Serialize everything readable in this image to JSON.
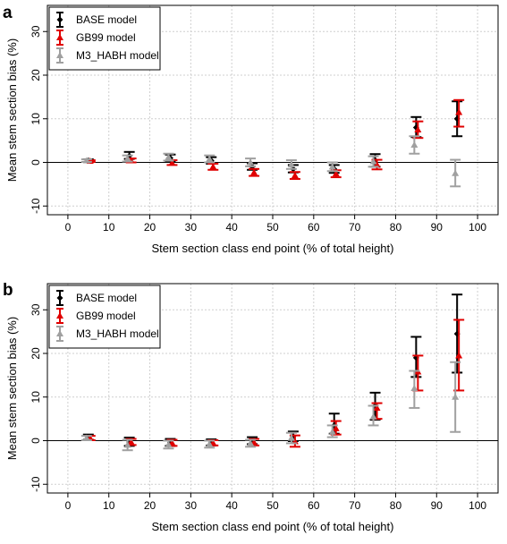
{
  "chart_data": [
    {
      "panel_label": "a",
      "type": "scatter",
      "xlabel": "Stem section class end point (% of total height)",
      "ylabel": "Mean stem section bias (%)",
      "xlim": [
        -5,
        105
      ],
      "ylim": [
        -12,
        36
      ],
      "xticks": [
        0,
        10,
        20,
        30,
        40,
        50,
        60,
        70,
        80,
        90,
        100
      ],
      "yticks": [
        -10,
        0,
        10,
        20,
        30
      ],
      "grid": true,
      "legend_position": "top-left",
      "x": [
        5,
        15,
        25,
        35,
        45,
        55,
        65,
        75,
        85,
        95
      ],
      "series": [
        {
          "name": "BASE model",
          "color": "#000000",
          "marker": "diamond",
          "values": [
            0.4,
            1.5,
            1.0,
            0.4,
            -1.0,
            -1.5,
            -1.5,
            0.5,
            8.0,
            10.0
          ],
          "low": [
            0.1,
            0.8,
            0.3,
            -0.3,
            -1.7,
            -2.3,
            -2.4,
            -1.0,
            5.8,
            6.0
          ],
          "high": [
            0.7,
            2.4,
            1.8,
            1.2,
            -0.2,
            -0.6,
            -0.6,
            1.9,
            10.4,
            14.0
          ]
        },
        {
          "name": "GB99 model",
          "color": "#e00000",
          "marker": "triangle",
          "values": [
            0.3,
            0.4,
            -0.1,
            -1.0,
            -2.3,
            -3.0,
            -2.6,
            -0.5,
            7.5,
            11.5
          ],
          "low": [
            0.1,
            0.0,
            -0.6,
            -1.7,
            -3.1,
            -3.8,
            -3.4,
            -1.6,
            5.6,
            8.2
          ],
          "high": [
            0.5,
            0.9,
            0.5,
            -0.3,
            -1.5,
            -2.2,
            -1.8,
            0.6,
            9.4,
            14.3
          ]
        },
        {
          "name": "M3_HABH model",
          "color": "#a0a0a0",
          "marker": "triangle-up",
          "values": [
            0.4,
            0.9,
            1.2,
            0.8,
            0.0,
            -0.5,
            -1.0,
            0.2,
            4.0,
            -2.5
          ],
          "low": [
            0.1,
            0.2,
            0.4,
            0.0,
            -0.9,
            -1.5,
            -2.0,
            -1.0,
            2.0,
            -5.5
          ],
          "high": [
            0.7,
            1.6,
            2.0,
            1.6,
            0.9,
            0.5,
            0.0,
            1.4,
            6.0,
            0.6
          ]
        }
      ]
    },
    {
      "panel_label": "b",
      "type": "scatter",
      "xlabel": "Stem section class end point (% of total height)",
      "ylabel": "Mean stem section bias (%)",
      "xlim": [
        -5,
        105
      ],
      "ylim": [
        -12,
        36
      ],
      "xticks": [
        0,
        10,
        20,
        30,
        40,
        50,
        60,
        70,
        80,
        90,
        100
      ],
      "yticks": [
        -10,
        0,
        10,
        20,
        30
      ],
      "grid": true,
      "legend_position": "top-left",
      "x": [
        5,
        15,
        25,
        35,
        45,
        55,
        65,
        75,
        85,
        95
      ],
      "series": [
        {
          "name": "BASE model",
          "color": "#000000",
          "marker": "diamond",
          "values": [
            0.8,
            -0.3,
            -0.4,
            -0.4,
            0.0,
            1.0,
            3.5,
            8.0,
            19.0,
            24.5
          ],
          "low": [
            0.2,
            -1.2,
            -1.2,
            -1.1,
            -0.8,
            -0.1,
            1.6,
            4.8,
            14.6,
            15.6
          ],
          "high": [
            1.4,
            0.7,
            0.4,
            0.3,
            0.8,
            2.1,
            6.2,
            11.0,
            23.8,
            33.5
          ]
        },
        {
          "name": "GB99 model",
          "color": "#e00000",
          "marker": "triangle",
          "values": [
            0.6,
            -0.3,
            -0.5,
            -0.5,
            -0.4,
            -0.2,
            2.8,
            7.5,
            15.8,
            19.5
          ],
          "low": [
            0.1,
            -1.0,
            -1.2,
            -1.1,
            -1.1,
            -1.4,
            1.4,
            5.0,
            11.5,
            11.5
          ],
          "high": [
            1.1,
            0.4,
            0.2,
            0.1,
            0.4,
            1.2,
            4.5,
            8.6,
            19.5,
            27.7
          ]
        },
        {
          "name": "M3_HABH model",
          "color": "#a0a0a0",
          "marker": "triangle-up",
          "values": [
            0.6,
            -1.0,
            -0.9,
            -0.8,
            -0.6,
            0.6,
            2.0,
            5.5,
            12.0,
            10.0
          ],
          "low": [
            0.1,
            -2.2,
            -1.8,
            -1.6,
            -1.4,
            -0.6,
            0.8,
            3.5,
            7.5,
            2.0
          ],
          "high": [
            1.1,
            0.2,
            0.0,
            0.0,
            0.2,
            1.8,
            3.5,
            8.0,
            16.0,
            18.0
          ]
        }
      ]
    }
  ]
}
